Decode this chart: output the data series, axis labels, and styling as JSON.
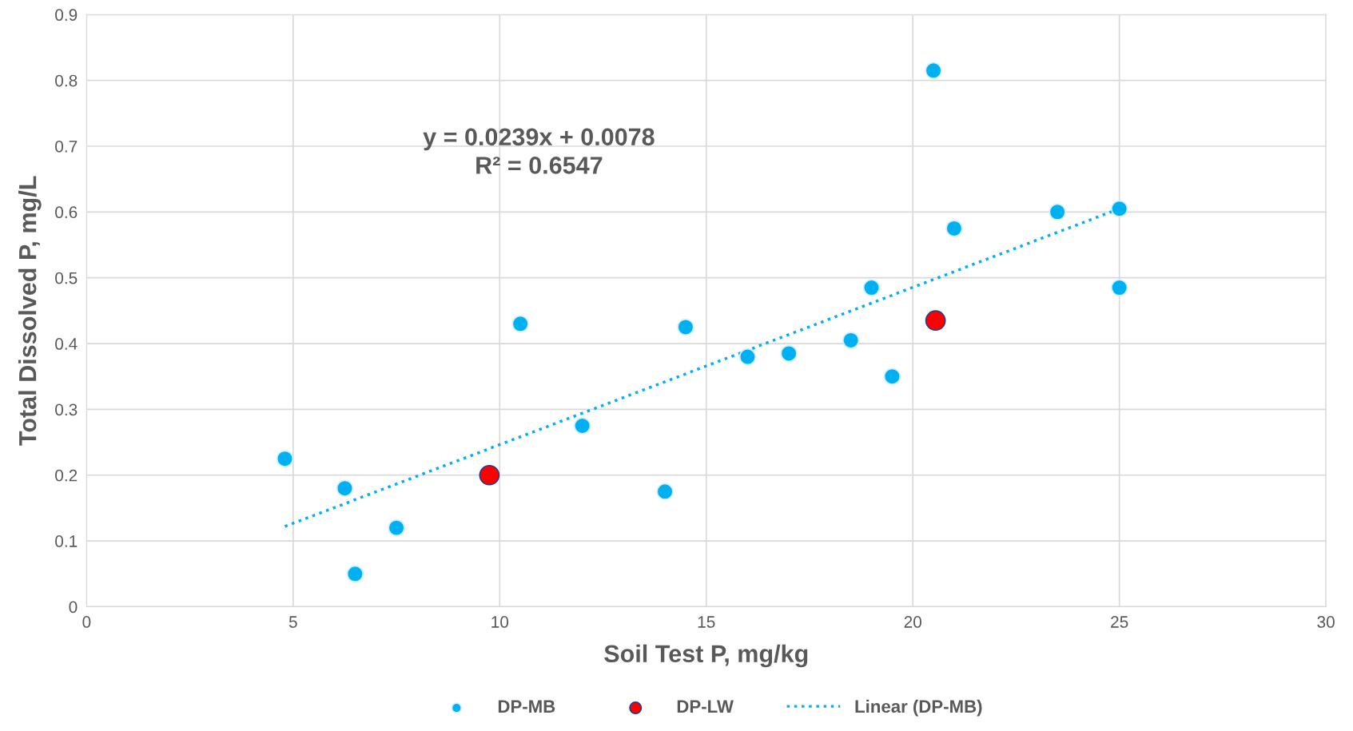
{
  "chart_data": {
    "type": "scatter",
    "xlabel": "Soil Test P, mg/kg",
    "ylabel": "Total Dissolved P, mg/L",
    "xlim": [
      0,
      30
    ],
    "xticks": [
      0,
      5,
      10,
      15,
      20,
      25,
      30
    ],
    "ylim": [
      0,
      0.9
    ],
    "yticks": [
      0,
      0.1,
      0.2,
      0.3,
      0.4,
      0.5,
      0.6,
      0.7,
      0.8,
      0.9
    ],
    "grid": true,
    "legend": "bottom",
    "marker": "circle",
    "annotations": [
      "y = 0.0239x + 0.0078",
      "R² = 0.6547"
    ],
    "series": [
      {
        "name": "DP-MB",
        "color": "#00b0f0",
        "x": [
          4.8,
          6.25,
          6.5,
          7.5,
          10.5,
          12.0,
          14.0,
          14.5,
          16.0,
          17.0,
          18.5,
          19.0,
          19.5,
          20.5,
          21.0,
          23.5,
          25.0,
          25.0
        ],
        "values": [
          0.225,
          0.18,
          0.05,
          0.12,
          0.43,
          0.275,
          0.175,
          0.425,
          0.38,
          0.385,
          0.405,
          0.485,
          0.35,
          0.815,
          0.575,
          0.6,
          0.605,
          0.485
        ]
      },
      {
        "name": "DP-LW",
        "color": "#ff0000",
        "x": [
          9.75,
          20.55
        ],
        "values": [
          0.2,
          0.435
        ]
      },
      {
        "name": "Linear (DP-MB)",
        "type": "line",
        "color": "#00b0f0",
        "line_style": "dotted",
        "marker": "none",
        "x": [
          4.8,
          25.0
        ],
        "values": [
          0.122,
          0.605
        ]
      }
    ]
  }
}
